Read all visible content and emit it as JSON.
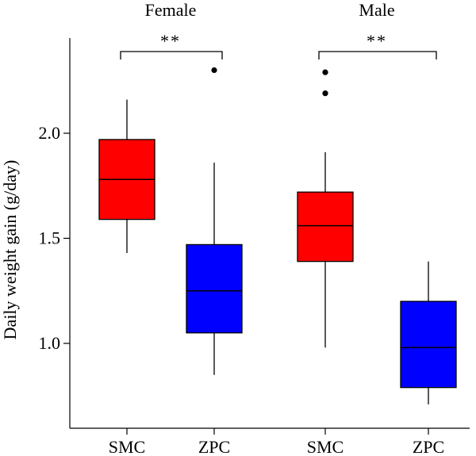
{
  "chart_data": {
    "type": "box",
    "ylabel": "Daily weight gain (g/day)",
    "ylim": [
      0.7,
      2.45
    ],
    "yticks": [
      1.0,
      1.5,
      2.0
    ],
    "ytick_labels": [
      "1.0",
      "1.5",
      "2.0"
    ],
    "groups": [
      {
        "label": "Female",
        "significance": "**",
        "boxes": [
          {
            "category": "SMC",
            "color": "#ff0000",
            "whisker_low": 1.43,
            "q1": 1.59,
            "median": 1.78,
            "q3": 1.97,
            "whisker_high": 2.16,
            "outliers": []
          },
          {
            "category": "ZPC",
            "color": "#0000ff",
            "whisker_low": 0.85,
            "q1": 1.05,
            "median": 1.25,
            "q3": 1.47,
            "whisker_high": 1.86,
            "outliers": [
              2.3
            ]
          }
        ]
      },
      {
        "label": "Male",
        "significance": "**",
        "boxes": [
          {
            "category": "SMC",
            "color": "#ff0000",
            "whisker_low": 0.98,
            "q1": 1.39,
            "median": 1.56,
            "q3": 1.72,
            "whisker_high": 1.91,
            "outliers": [
              2.29,
              2.19
            ]
          },
          {
            "category": "ZPC",
            "color": "#0000ff",
            "whisker_low": 0.71,
            "q1": 0.79,
            "median": 0.98,
            "q3": 1.2,
            "whisker_high": 1.39,
            "outliers": []
          }
        ]
      }
    ]
  }
}
